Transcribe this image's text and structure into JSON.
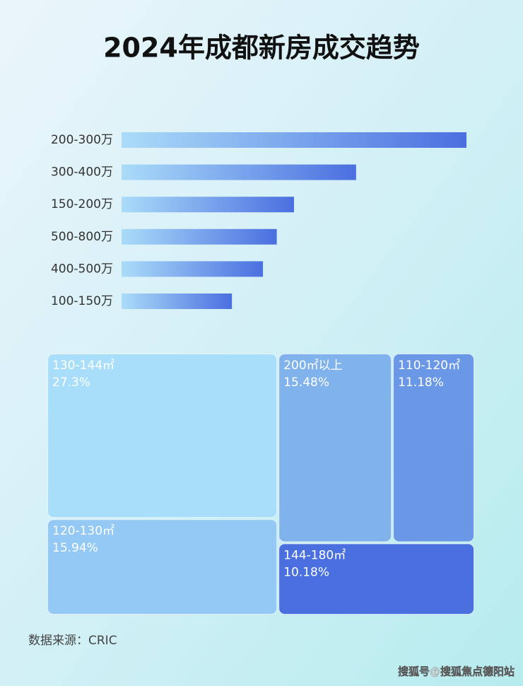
{
  "title": "2024年成都新房成交趋势",
  "chart_data": [
    {
      "type": "bar",
      "orientation": "horizontal",
      "categories": [
        "200-300万",
        "300-400万",
        "150-200万",
        "500-800万",
        "400-500万",
        "100-150万"
      ],
      "values": [
        100,
        68,
        50,
        45,
        41,
        32
      ],
      "colors": [
        "#aadcf9",
        "#4b6fe0"
      ]
    },
    {
      "type": "treemap",
      "categories": [
        "130-144㎡",
        "200㎡以上",
        "110-120㎡",
        "120-130㎡",
        "144-180㎡"
      ],
      "values": [
        27.3,
        15.48,
        11.18,
        15.94,
        10.18
      ],
      "value_labels": [
        "27.3%",
        "15.48%",
        "11.18%",
        "15.94%",
        "10.18%"
      ],
      "colors": [
        "#a9defa",
        "#80b2ec",
        "#6a98e6",
        "#93c9f4",
        "#4a70e0"
      ]
    }
  ],
  "source": "数据来源：CRIC",
  "watermark": "搜狐号@搜狐焦点德阳站"
}
